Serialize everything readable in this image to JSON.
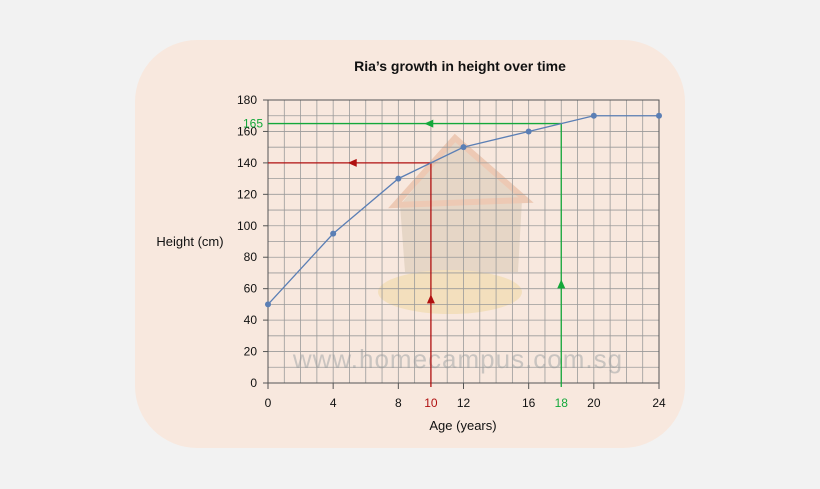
{
  "chart_data": {
    "type": "line",
    "title": "Ria’s growth in height over time",
    "xlabel": "Age (years)",
    "ylabel": "Height (cm)",
    "x": [
      0,
      4,
      8,
      12,
      16,
      20,
      24
    ],
    "y": [
      50,
      95,
      130,
      150,
      160,
      170,
      170
    ],
    "xticks": [
      0,
      4,
      8,
      12,
      16,
      20,
      24
    ],
    "yticks": [
      0,
      20,
      40,
      60,
      80,
      100,
      120,
      140,
      160,
      180
    ],
    "xlim": [
      0,
      24
    ],
    "ylim": [
      0,
      180
    ],
    "grid": true,
    "series_color": "#5b7fb5",
    "annotations": [
      {
        "x": 10,
        "y": 140,
        "x_label": "10",
        "color": "#b01010"
      },
      {
        "x": 18,
        "y": 165,
        "x_label": "18",
        "y_label": "165",
        "color": "#13a83a"
      }
    ]
  },
  "watermark": "www.homecampus.com.sg"
}
